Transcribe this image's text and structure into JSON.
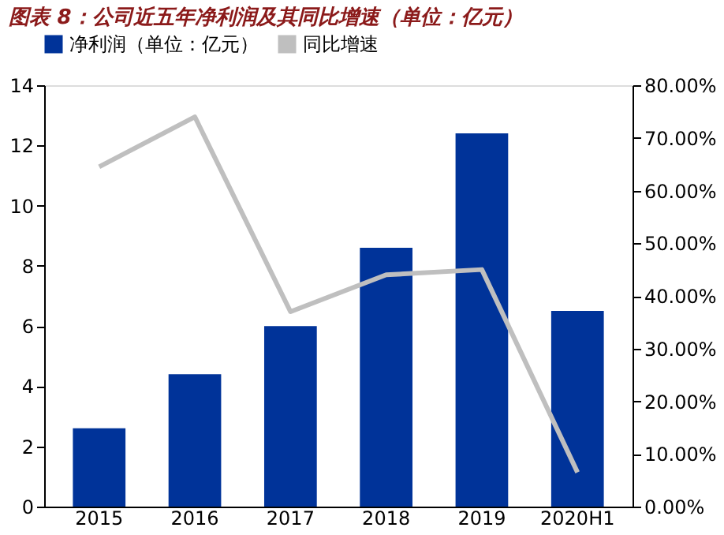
{
  "chart_data": {
    "type": "bar",
    "title": "图表 8：公司近五年净利润及其同比增速（单位：亿元）",
    "categories": [
      "2015",
      "2016",
      "2017",
      "2018",
      "2019",
      "2020H1"
    ],
    "series": [
      {
        "name": "净利润（单位：亿元）",
        "color": "#003399",
        "values": [
          2.6,
          4.4,
          6.0,
          8.6,
          12.4,
          6.5
        ]
      },
      {
        "name": "同比增速",
        "type": "line",
        "axis": "y2",
        "color": "#bfbfbf",
        "values": [
          64.5,
          74.0,
          37.0,
          44.0,
          45.0,
          6.5
        ]
      }
    ],
    "ylim": [
      0,
      14
    ],
    "yticks": [
      0,
      2,
      4,
      6,
      8,
      10,
      12,
      14
    ],
    "y2lim": [
      0,
      80
    ],
    "y2ticks": [
      {
        "value": 0,
        "label": "0.00%"
      },
      {
        "value": 10,
        "label": "10.00%"
      },
      {
        "value": 20,
        "label": "20.00%"
      },
      {
        "value": 30,
        "label": "30.00%"
      },
      {
        "value": 40,
        "label": "40.00%"
      },
      {
        "value": 50,
        "label": "50.00%"
      },
      {
        "value": 60,
        "label": "60.00%"
      },
      {
        "value": 70,
        "label": "70.00%"
      },
      {
        "value": 80,
        "label": "80.00%"
      }
    ],
    "legend": "top",
    "grid": false,
    "marker": "none",
    "line_style": "solid"
  }
}
